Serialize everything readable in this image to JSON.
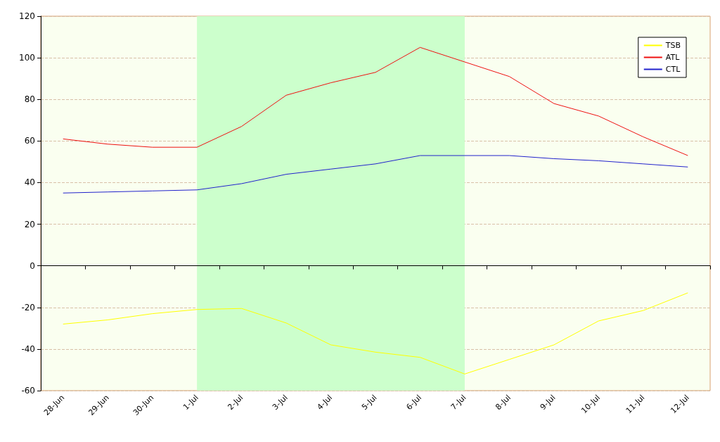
{
  "chart_data": {
    "type": "line",
    "categories": [
      "28-Jun",
      "29-Jun",
      "30-Jun",
      "1-Jul",
      "2-Jul",
      "3-Jul",
      "4-Jul",
      "5-Jul",
      "6-Jul",
      "7-Jul",
      "8-Jul",
      "9-Jul",
      "10-Jul",
      "11-Jul",
      "12-Jul"
    ],
    "series": [
      {
        "name": "TSB",
        "color": "#ffff00",
        "values": [
          -28,
          -26,
          -23,
          -21,
          -20.5,
          -27.5,
          -38,
          -41.5,
          -44,
          -52,
          -45,
          -38,
          -26.5,
          -21.5,
          -13
        ]
      },
      {
        "name": "ATL",
        "color": "#ee1111",
        "values": [
          61,
          58.5,
          57,
          57,
          67,
          82,
          88,
          93,
          105,
          98,
          91,
          78,
          72,
          62,
          53
        ]
      },
      {
        "name": "CTL",
        "color": "#2222cc",
        "values": [
          35,
          35.5,
          36,
          36.5,
          39.5,
          44,
          46.5,
          49,
          53,
          53,
          53,
          51.5,
          50.5,
          49,
          47.5
        ]
      }
    ],
    "bands": [
      {
        "axis": "x",
        "from": "1-Jul",
        "to": "7-Jul",
        "color": "#ccffcc"
      }
    ],
    "ylim": [
      -60,
      120
    ],
    "yticks": [
      -60,
      -40,
      -20,
      0,
      20,
      40,
      60,
      80,
      100,
      120
    ],
    "grid": "y",
    "legend": "top right",
    "marker": "none",
    "line_style": "solid"
  }
}
